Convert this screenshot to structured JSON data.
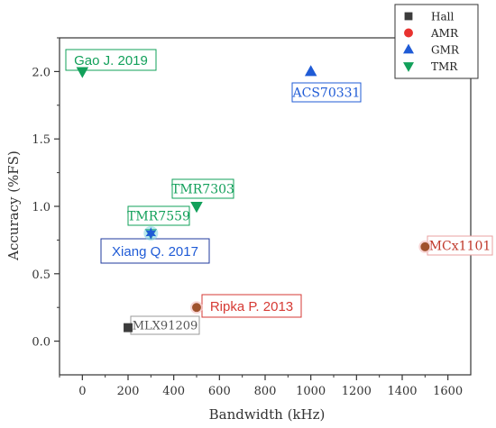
{
  "chart_data": {
    "type": "scatter",
    "xlabel": "Bandwidth (kHz)",
    "ylabel": "Accuracy (%FS)",
    "xlim": [
      -100,
      1700
    ],
    "ylim": [
      -0.25,
      2.25
    ],
    "xticks": [
      0,
      200,
      400,
      600,
      800,
      1000,
      1200,
      1400,
      1600
    ],
    "xtick_labels": [
      "0",
      "200",
      "400",
      "600",
      "800",
      "1000",
      "1200",
      "1400",
      "1600"
    ],
    "yticks": [
      0.0,
      0.5,
      1.0,
      1.5,
      2.0
    ],
    "ytick_labels": [
      "0.0",
      "0.5",
      "1.0",
      "1.5",
      "2.0"
    ],
    "grid": false,
    "legend_position": "top-right",
    "series": [
      {
        "name": "Hall",
        "marker": "square",
        "color": "#3c3c3c",
        "points": [
          {
            "x": 200,
            "y": 0.1,
            "label": "MLX91209"
          }
        ]
      },
      {
        "name": "AMR",
        "marker": "circle",
        "color": "#e8322f",
        "points": [
          {
            "x": 1500,
            "y": 0.7,
            "label": "MCx1101"
          },
          {
            "x": 500,
            "y": 0.25,
            "label": "Ripka P. 2013"
          }
        ]
      },
      {
        "name": "GMR",
        "marker": "triangle-up",
        "color": "#1f5bd6",
        "points": [
          {
            "x": 1000,
            "y": 2.0,
            "label": "ACS70331"
          }
        ]
      },
      {
        "name": "TMR",
        "marker": "triangle-down",
        "color": "#12a05a",
        "points": [
          {
            "x": 0,
            "y": 2.0,
            "label": "Gao J. 2019"
          },
          {
            "x": 500,
            "y": 1.0,
            "label": "TMR7303"
          },
          {
            "x": 300,
            "y": 0.8,
            "label": "TMR7559"
          }
        ]
      }
    ],
    "highlight_points": [
      {
        "x": 300,
        "y": 0.8,
        "label": "Xiang Q. 2017",
        "marker": "star",
        "color": "#1f5bd6"
      }
    ],
    "annotations": [
      {
        "text": "Gao J. 2019",
        "color": "#12a05a",
        "border": "#12a05a",
        "font": "sans"
      },
      {
        "text": "ACS70331",
        "color": "#1f5bd6",
        "border": "#1f5bd6",
        "font": "serif"
      },
      {
        "text": "TMR7303",
        "color": "#12a05a",
        "border": "#12a05a",
        "font": "serif"
      },
      {
        "text": "TMR7559",
        "color": "#12a05a",
        "border": "#12a05a",
        "font": "serif"
      },
      {
        "text": "Xiang Q. 2017",
        "color": "#1f5bd6",
        "border": "#1f3a9e",
        "font": "sans"
      },
      {
        "text": "MCx1101",
        "color": "#c0392b",
        "border": "#e8a0a0",
        "font": "serif"
      },
      {
        "text": "Ripka P. 2013",
        "color": "#d63a34",
        "border": "#d63a34",
        "font": "sans"
      },
      {
        "text": "MLX91209",
        "color": "#555555",
        "border": "#999999",
        "font": "serif"
      }
    ]
  }
}
